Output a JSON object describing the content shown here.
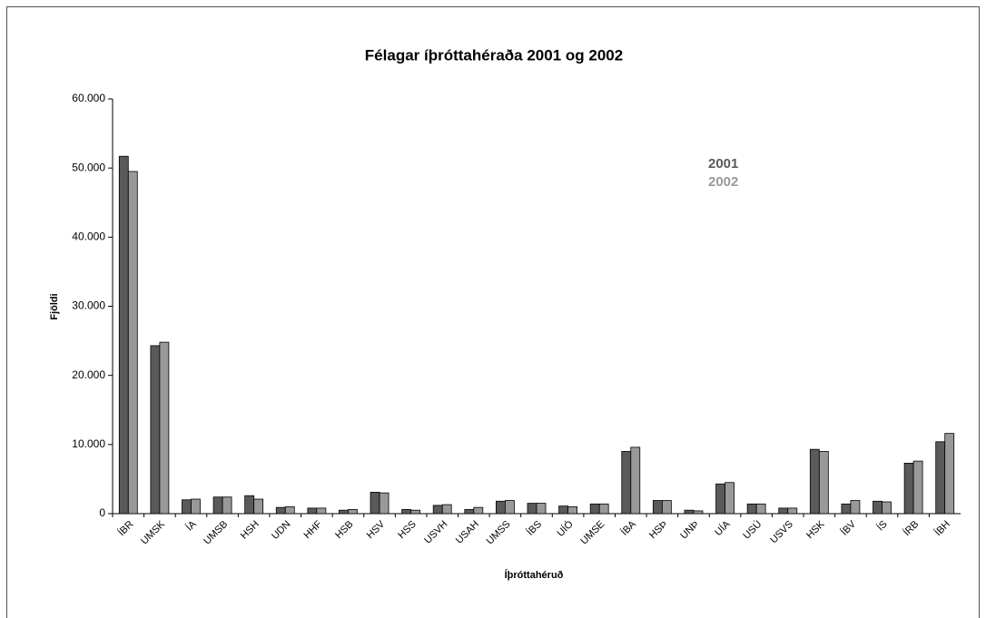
{
  "chart_data": {
    "type": "bar",
    "title": "Félagar íþróttahéraða 2001 og 2002",
    "x_label": "Íþróttahéruð",
    "y_label": "Fjöldi",
    "categories": [
      "ÍBR",
      "UMSK",
      "ÍA",
      "UMSB",
      "HSH",
      "UDN",
      "HHF",
      "HSB",
      "HSV",
      "HSS",
      "USVH",
      "USAH",
      "UMSS",
      "ÍBS",
      "UÍÓ",
      "UMSE",
      "ÍBA",
      "HSÞ",
      "UNÞ",
      "UÍA",
      "USÚ",
      "USVS",
      "HSK",
      "ÍBV",
      "ÍS",
      "ÍRB",
      "ÍBH"
    ],
    "series": [
      {
        "name": "2001",
        "color": "#5a5a5a",
        "values": [
          51700,
          24300,
          2000,
          2400,
          2600,
          900,
          800,
          500,
          3100,
          600,
          1200,
          600,
          1800,
          1500,
          1100,
          1400,
          9000,
          1900,
          500,
          4300,
          1400,
          800,
          9300,
          1400,
          1800,
          7300,
          10400
        ]
      },
      {
        "name": "2002",
        "color": "#999999",
        "values": [
          49500,
          24800,
          2100,
          2400,
          2100,
          1000,
          800,
          600,
          3000,
          500,
          1300,
          900,
          1900,
          1500,
          1000,
          1400,
          9600,
          1900,
          400,
          4500,
          1400,
          800,
          9000,
          1900,
          1700,
          7600,
          11600
        ]
      }
    ],
    "ylim": [
      0,
      60000
    ],
    "yticks": [
      0,
      {
        "value": 10000,
        "label": "10.000"
      },
      {
        "value": 20000,
        "label": "20.000"
      },
      {
        "value": 30000,
        "label": "30.000"
      },
      {
        "value": 40000,
        "label": "40.000"
      },
      {
        "value": 50000,
        "label": "50.000"
      },
      {
        "value": 60000,
        "label": "60.000"
      }
    ],
    "grid": false,
    "legend": "upper right"
  }
}
